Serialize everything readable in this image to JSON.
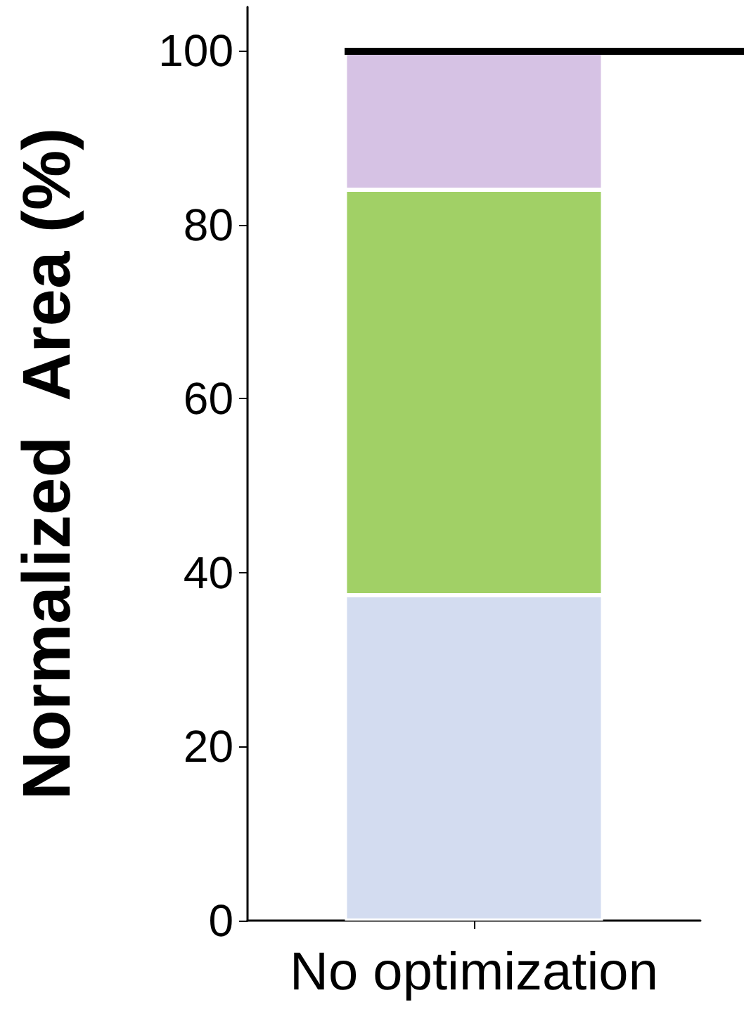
{
  "chart_data": {
    "type": "bar",
    "stacked": true,
    "ylabel": "Normalized  Area (%)",
    "categories": [
      "No optimization"
    ],
    "series": [
      {
        "color": "#d3dcf0",
        "values": [
          37.4
        ]
      },
      {
        "color": "#a1d066",
        "values": [
          46.6
        ]
      },
      {
        "color": "#d6c2e4",
        "values": [
          16.0
        ]
      }
    ],
    "ylim": [
      0,
      105
    ],
    "yticks": [
      0,
      20,
      40,
      60,
      80,
      100
    ],
    "ref_lines": [
      {
        "axis": "y",
        "value": 100,
        "color": "#000000"
      }
    ]
  }
}
